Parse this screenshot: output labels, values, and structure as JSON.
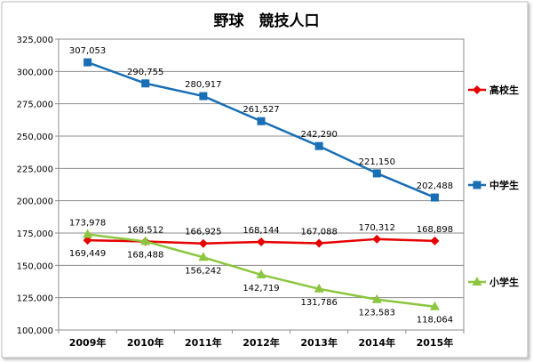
{
  "chart_data": {
    "type": "line",
    "title": "野球　競技人口",
    "categories": [
      "2009年",
      "2010年",
      "2011年",
      "2012年",
      "2013年",
      "2014年",
      "2015年"
    ],
    "ylim": [
      100000,
      325000
    ],
    "yticks": [
      100000,
      125000,
      150000,
      175000,
      200000,
      225000,
      250000,
      275000,
      300000,
      325000
    ],
    "ytick_labels": [
      "100,000",
      "125,000",
      "150,000",
      "175,000",
      "200,000",
      "225,000",
      "250,000",
      "275,000",
      "300,000",
      "325,000"
    ],
    "grid": true,
    "legend_position": "right",
    "series": [
      {
        "name": "高校生",
        "color": "#e60000",
        "marker": "diamond",
        "values": [
          169449,
          168488,
          166925,
          168144,
          167088,
          170312,
          168898
        ],
        "labels": [
          "169,449",
          "168,488",
          "166,925",
          "168,144",
          "167,088",
          "170,312",
          "168,898"
        ]
      },
      {
        "name": "中学生",
        "color": "#1a6eb4",
        "marker": "square",
        "values": [
          307053,
          290755,
          280917,
          261527,
          242290,
          221150,
          202488
        ],
        "labels": [
          "307,053",
          "290,755",
          "280,917",
          "261,527",
          "242,290",
          "221,150",
          "202,488"
        ]
      },
      {
        "name": "小学生",
        "color": "#8cc63f",
        "marker": "triangle",
        "values": [
          173978,
          168512,
          156242,
          142719,
          131786,
          123583,
          118064
        ],
        "labels": [
          "173,978",
          "168,512",
          "156,242",
          "142,719",
          "131,786",
          "123,583",
          "118,064"
        ]
      }
    ]
  }
}
